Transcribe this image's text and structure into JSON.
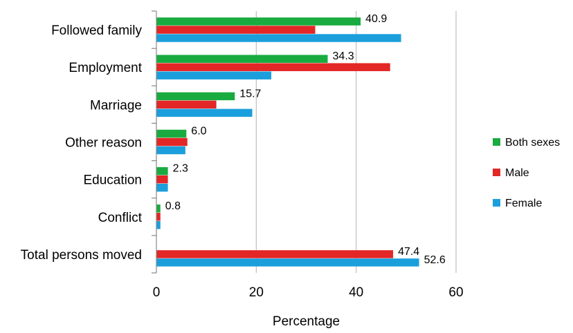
{
  "chart_data": {
    "type": "bar",
    "orientation": "horizontal",
    "categories": [
      "Followed family",
      "Employment",
      "Marriage",
      "Other reason",
      "Education",
      "Conflict",
      "Total persons moved"
    ],
    "series": [
      {
        "name": "Both sexes",
        "color": "#1aab40",
        "values": [
          40.9,
          34.3,
          15.7,
          6.0,
          2.3,
          0.8,
          null
        ]
      },
      {
        "name": "Male",
        "color": "#e32626",
        "values": [
          31.8,
          46.8,
          12.0,
          6.2,
          2.3,
          0.8,
          47.4
        ]
      },
      {
        "name": "Female",
        "color": "#1b9fdc",
        "values": [
          49.0,
          23.0,
          19.2,
          5.8,
          2.3,
          0.8,
          52.6
        ]
      }
    ],
    "data_labels": [
      {
        "category": "Followed family",
        "series": "Both sexes",
        "text": "40.9"
      },
      {
        "category": "Employment",
        "series": "Both sexes",
        "text": "34.3"
      },
      {
        "category": "Marriage",
        "series": "Both sexes",
        "text": "15.7"
      },
      {
        "category": "Other reason",
        "series": "Both sexes",
        "text": "6.0"
      },
      {
        "category": "Education",
        "series": "Both sexes",
        "text": "2.3"
      },
      {
        "category": "Conflict",
        "series": "Both sexes",
        "text": "0.8"
      },
      {
        "category": "Total persons moved",
        "series": "Male",
        "text": "47.4"
      },
      {
        "category": "Total persons moved",
        "series": "Female",
        "text": "52.6"
      }
    ],
    "xlabel": "Percentage",
    "ylabel": "",
    "xlim": [
      0,
      60
    ],
    "xticks": [
      0,
      20,
      40,
      60
    ],
    "grid": "vertical",
    "legend_position": "right"
  }
}
